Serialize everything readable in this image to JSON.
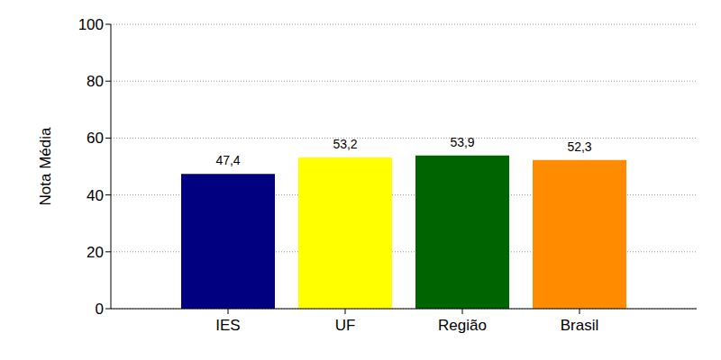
{
  "chart_data": {
    "type": "bar",
    "y_label": "Nota Média",
    "categories": [
      "IES",
      "UF",
      "Região",
      "Brasil"
    ],
    "values": [
      47.4,
      53.2,
      53.9,
      52.3
    ],
    "value_labels": [
      "47,4",
      "53,2",
      "53,9",
      "52,3"
    ],
    "colors": [
      "#000080",
      "#ffff00",
      "#006400",
      "#ff8c00"
    ],
    "ylim": [
      0,
      100
    ],
    "yticks": [
      0,
      20,
      40,
      60,
      80,
      100
    ],
    "grid": true,
    "data_labels": true
  }
}
